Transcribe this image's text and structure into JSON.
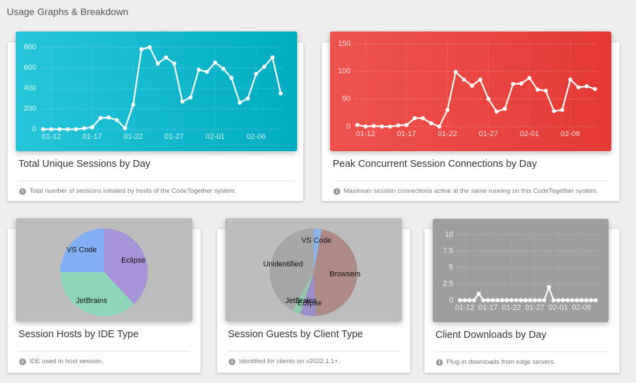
{
  "heading": "Usage Graphs & Breakdown",
  "chart_data": [
    {
      "type": "line",
      "title": "Total Unique Sessions by Day",
      "note": "Total number of sessions initiated by hosts of the CodeTogether system.",
      "categories": [
        null,
        "01-12",
        null,
        null,
        null,
        null,
        "01-17",
        null,
        null,
        null,
        null,
        "01-22",
        null,
        null,
        null,
        null,
        "01-27",
        null,
        null,
        null,
        null,
        "02-01",
        null,
        null,
        null,
        null,
        "02-06",
        null,
        null,
        null
      ],
      "values": [
        0,
        0,
        0,
        0,
        0,
        10,
        20,
        110,
        115,
        90,
        10,
        240,
        780,
        800,
        640,
        700,
        640,
        270,
        310,
        580,
        560,
        650,
        590,
        500,
        260,
        300,
        540,
        610,
        700,
        350
      ],
      "color": "#ffffff",
      "ylim": [
        0,
        800
      ],
      "yticks": [
        0,
        200,
        400,
        600,
        800
      ],
      "grid": true
    },
    {
      "type": "line",
      "title": "Peak Concurrent Session Connections by Day",
      "note": "Maximum session connections active at the same running on this CodeTogether system.",
      "categories": [
        null,
        "01-12",
        null,
        null,
        null,
        null,
        "01-17",
        null,
        null,
        null,
        null,
        "01-22",
        null,
        null,
        null,
        null,
        "01-27",
        null,
        null,
        null,
        null,
        "02-01",
        null,
        null,
        null,
        null,
        "02-06",
        null,
        null,
        null
      ],
      "values": [
        3,
        0,
        1,
        0,
        0,
        2,
        3,
        15,
        15,
        6,
        0,
        30,
        99,
        85,
        74,
        85,
        50,
        27,
        32,
        77,
        78,
        88,
        67,
        65,
        28,
        30,
        85,
        71,
        73,
        68
      ],
      "color": "#ffffff",
      "ylim": [
        0,
        150
      ],
      "yticks": [
        0,
        50,
        100,
        150
      ],
      "grid": true
    },
    {
      "type": "pie",
      "title": "Session Hosts by IDE Type",
      "note": "IDE used to host session.",
      "categories": [
        "Eclipse",
        "JetBrains",
        "VS Code"
      ],
      "values": [
        38,
        37,
        25
      ],
      "colors": [
        "#a793d8",
        "#8ed6b8",
        "#82aef5"
      ]
    },
    {
      "type": "pie",
      "title": "Session Guests by Client Type",
      "note": "Identified for clients on v2022.1.1+.",
      "categories": [
        "VS Code",
        "Browsers",
        "Eclipse",
        "JetBrains",
        "Unidentified"
      ],
      "values": [
        3,
        46,
        6,
        3,
        42
      ],
      "colors": [
        "#8eb3e8",
        "#ad8a86",
        "#9b8fc7",
        "#8fcaaa",
        "#a6a6a6"
      ]
    },
    {
      "type": "line",
      "title": "Client Downloads by Day",
      "note": "Plug-in downloads from edge servers.",
      "categories": [
        null,
        "01-12",
        null,
        null,
        null,
        null,
        "01-17",
        null,
        null,
        null,
        null,
        "01-22",
        null,
        null,
        null,
        null,
        "01-27",
        null,
        null,
        null,
        null,
        "02-01",
        null,
        null,
        null,
        null,
        "02-06",
        null,
        null,
        null
      ],
      "values": [
        0,
        0,
        0,
        0,
        1,
        0,
        0,
        0,
        0,
        0,
        0,
        0,
        0,
        0,
        0,
        0,
        0,
        0,
        0,
        2,
        0,
        0,
        0,
        0,
        0,
        0,
        0,
        0,
        0,
        0
      ],
      "color": "#ffffff",
      "ylim": [
        0,
        10
      ],
      "yticks": [
        0,
        2.5,
        5,
        7.5,
        10
      ],
      "grid": true
    }
  ]
}
